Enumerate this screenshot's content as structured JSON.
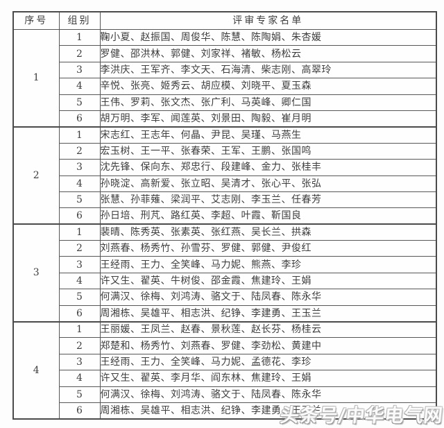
{
  "table": {
    "headers": {
      "index": "序号",
      "group": "组别",
      "experts": "评审专家名单"
    },
    "groups": [
      {
        "index": "1",
        "rows": [
          {
            "no": "1",
            "names": "鞠小夏、赵振国、周俊华、陈慧、陈陶娟、朱杏媛"
          },
          {
            "no": "2",
            "names": "罗健、邵洪林、郭健、刘家祥、褚敏、杨松云"
          },
          {
            "no": "3",
            "names": "李洪庆、王军齐、李文天、石海清、柴志刚、高翠玲"
          },
          {
            "no": "4",
            "names": "辛悦、张亮、姬秀云、胡应模、刘晓平、夏玉森"
          },
          {
            "no": "5",
            "names": "王伟、罗莉、张文杰、张广利、马英峰、卿仁国"
          },
          {
            "no": "6",
            "names": "胡万明、李军、闻莲英、刘景田、陶毅、崔月明"
          }
        ]
      },
      {
        "index": "2",
        "rows": [
          {
            "no": "1",
            "names": "宋志红、王志年、何晶、尹昆、吴瑾、马燕生"
          },
          {
            "no": "2",
            "names": "宏玉树、王一平、张春荣、王军、王鹏、张国鸣"
          },
          {
            "no": "3",
            "names": "沈先锋、保向东、郑忠行、段建峰、金力、张桂丰"
          },
          {
            "no": "4",
            "names": "孙晓淀、高新爱、张立昭、吴清才、张心平、张弘"
          },
          {
            "no": "5",
            "names": "张慧、孙菲薙、梁润平、艾志刚、李玉兰、任春芳"
          },
          {
            "no": "6",
            "names": "孙日培、刑芃、路红英、李超、叶霞、靳国良"
          }
        ]
      },
      {
        "index": "3",
        "rows": [
          {
            "no": "1",
            "names": "裴晴、陈秀英、张素英、张红燕、吴长兰、拱森"
          },
          {
            "no": "2",
            "names": "刘燕春、杨秀竹、孙雪芬、罗健、郭健、尹俊红"
          },
          {
            "no": "3",
            "names": "王经雨、王力、全笑峰、马力妮、熊燕、李珍"
          },
          {
            "no": "4",
            "names": "许又生、翟英、牛树俊、邵金霞、焦建玲、王娟"
          },
          {
            "no": "5",
            "names": "何满汉、徐梅、刘鸿涛、骆文于、陆凤春、陈永华"
          },
          {
            "no": "6",
            "names": "周湘栋、吴雄平、相志洪、纪铮、李建勇、王玉兰"
          }
        ]
      },
      {
        "index": "4",
        "rows": [
          {
            "no": "1",
            "names": "王丽媛、王凤兰、赵春、景秋莲、赵长芬、杨桂云"
          },
          {
            "no": "2",
            "names": "郑楚和、杨秀竹、刘燕春、罗健、李劲松、黄建中"
          },
          {
            "no": "3",
            "names": "王经雨、王力、全笑峰、马力妮、孟德花、李珍"
          },
          {
            "no": "4",
            "names": "许又生、翟英、李月华、阎东林、焦建玲、王娟"
          },
          {
            "no": "5",
            "names": "何满汉、徐梅、刘鸿涛、骆文于、陆凤春、陈永华"
          },
          {
            "no": "6",
            "names": "周湘栋、吴雄平、相志洪、纪铮、李建勇、王玉兰"
          }
        ]
      }
    ]
  },
  "watermark": {
    "text": "头条号/中华电气网"
  },
  "colors": {
    "border": "#4a4a4a",
    "inner_border": "#565656",
    "text": "#3d3d3d",
    "background": "#fdfdfd",
    "watermark_fill": "#fbfbfb",
    "watermark_outline": "#9e9e9e"
  }
}
